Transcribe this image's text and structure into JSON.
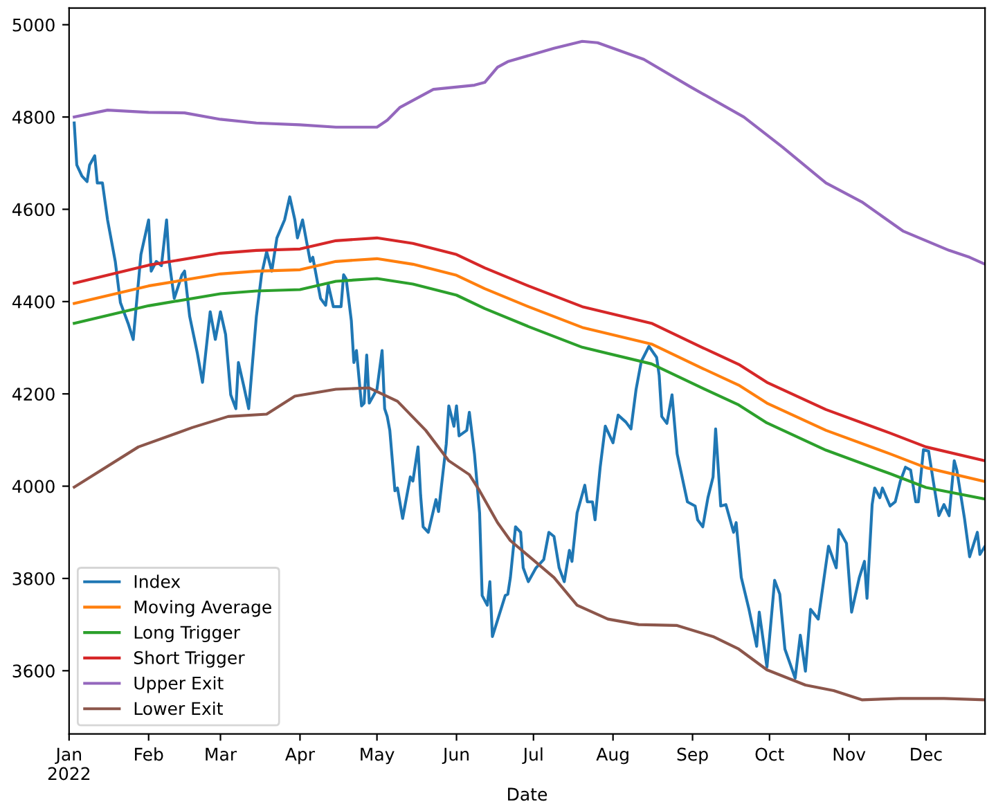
{
  "chart_data": {
    "type": "line",
    "xlabel": "Date",
    "legend": "bottom left",
    "grid": false,
    "marker": "none",
    "line_style": "solid",
    "xlim": [
      "2022-01-01",
      "2022-12-24"
    ],
    "xticks": [
      {
        "value": "2022-01-01",
        "label": "Jan\n2022"
      },
      {
        "value": "2022-02-01",
        "label": "Feb"
      },
      {
        "value": "2022-03-01",
        "label": "Mar"
      },
      {
        "value": "2022-04-01",
        "label": "Apr"
      },
      {
        "value": "2022-05-01",
        "label": "May"
      },
      {
        "value": "2022-06-01",
        "label": "Jun"
      },
      {
        "value": "2022-07-01",
        "label": "Jul"
      },
      {
        "value": "2022-08-01",
        "label": "Aug"
      },
      {
        "value": "2022-09-01",
        "label": "Sep"
      },
      {
        "value": "2022-10-01",
        "label": "Oct"
      },
      {
        "value": "2022-11-01",
        "label": "Nov"
      },
      {
        "value": "2022-12-01",
        "label": "Dec"
      }
    ],
    "ylim": [
      3463,
      5036
    ],
    "yticks": [
      3600,
      3800,
      4000,
      4200,
      4400,
      4600,
      4800,
      5000
    ],
    "series": [
      {
        "name": "Index",
        "color": "#1f77b4",
        "x": [
          "2022-01-03",
          "2022-01-04",
          "2022-01-06",
          "2022-01-08",
          "2022-01-09",
          "2022-01-11",
          "2022-01-12",
          "2022-01-14",
          "2022-01-16",
          "2022-01-19",
          "2022-01-21",
          "2022-01-24",
          "2022-01-26",
          "2022-01-29",
          "2022-02-01",
          "2022-02-02",
          "2022-02-04",
          "2022-02-06",
          "2022-02-08",
          "2022-02-09",
          "2022-02-11",
          "2022-02-14",
          "2022-02-15",
          "2022-02-17",
          "2022-02-20",
          "2022-02-22",
          "2022-02-25",
          "2022-02-27",
          "2022-03-01",
          "2022-03-03",
          "2022-03-05",
          "2022-03-07",
          "2022-03-08",
          "2022-03-10",
          "2022-03-12",
          "2022-03-15",
          "2022-03-17",
          "2022-03-19",
          "2022-03-21",
          "2022-03-23",
          "2022-03-26",
          "2022-03-28",
          "2022-03-30",
          "2022-03-31",
          "2022-04-02",
          "2022-04-05",
          "2022-04-06",
          "2022-04-09",
          "2022-04-11",
          "2022-04-12",
          "2022-04-14",
          "2022-04-17",
          "2022-04-18",
          "2022-04-19",
          "2022-04-21",
          "2022-04-22",
          "2022-04-23",
          "2022-04-25",
          "2022-04-26",
          "2022-04-27",
          "2022-04-28",
          "2022-05-01",
          "2022-05-03",
          "2022-05-04",
          "2022-05-05",
          "2022-05-06",
          "2022-05-08",
          "2022-05-09",
          "2022-05-11",
          "2022-05-14",
          "2022-05-15",
          "2022-05-17",
          "2022-05-18",
          "2022-05-19",
          "2022-05-21",
          "2022-05-24",
          "2022-05-25",
          "2022-05-28",
          "2022-05-29",
          "2022-05-31",
          "2022-06-01",
          "2022-06-02",
          "2022-06-05",
          "2022-06-06",
          "2022-06-08",
          "2022-06-10",
          "2022-06-11",
          "2022-06-13",
          "2022-06-14",
          "2022-06-15",
          "2022-06-20",
          "2022-06-21",
          "2022-06-22",
          "2022-06-24",
          "2022-06-26",
          "2022-06-27",
          "2022-06-29",
          "2022-07-02",
          "2022-07-05",
          "2022-07-07",
          "2022-07-09",
          "2022-07-11",
          "2022-07-13",
          "2022-07-15",
          "2022-07-16",
          "2022-07-18",
          "2022-07-21",
          "2022-07-22",
          "2022-07-24",
          "2022-07-25",
          "2022-07-27",
          "2022-07-29",
          "2022-08-01",
          "2022-08-03",
          "2022-08-06",
          "2022-08-08",
          "2022-08-10",
          "2022-08-12",
          "2022-08-15",
          "2022-08-18",
          "2022-08-19",
          "2022-08-20",
          "2022-08-22",
          "2022-08-24",
          "2022-08-26",
          "2022-08-30",
          "2022-09-02",
          "2022-09-03",
          "2022-09-05",
          "2022-09-07",
          "2022-09-09",
          "2022-09-10",
          "2022-09-12",
          "2022-09-14",
          "2022-09-17",
          "2022-09-18",
          "2022-09-20",
          "2022-09-23",
          "2022-09-26",
          "2022-09-27",
          "2022-09-30",
          "2022-10-03",
          "2022-10-05",
          "2022-10-07",
          "2022-10-11",
          "2022-10-13",
          "2022-10-15",
          "2022-10-17",
          "2022-10-20",
          "2022-10-24",
          "2022-10-27",
          "2022-10-28",
          "2022-10-31",
          "2022-11-02",
          "2022-11-05",
          "2022-11-07",
          "2022-11-08",
          "2022-11-10",
          "2022-11-11",
          "2022-11-13",
          "2022-11-14",
          "2022-11-17",
          "2022-11-19",
          "2022-11-21",
          "2022-11-23",
          "2022-11-25",
          "2022-11-27",
          "2022-11-28",
          "2022-11-30",
          "2022-12-02",
          "2022-12-04",
          "2022-12-06",
          "2022-12-08",
          "2022-12-10",
          "2022-12-12",
          "2022-12-13",
          "2022-12-16",
          "2022-12-18",
          "2022-12-21",
          "2022-12-22",
          "2022-12-24"
        ],
        "values": [
          4787,
          4696,
          4672,
          4660,
          4696,
          4716,
          4657,
          4657,
          4577,
          4487,
          4398,
          4353,
          4318,
          4502,
          4577,
          4466,
          4487,
          4478,
          4577,
          4487,
          4407,
          4458,
          4466,
          4368,
          4288,
          4225,
          4378,
          4318,
          4378,
          4329,
          4198,
          4168,
          4268,
          4219,
          4168,
          4368,
          4458,
          4508,
          4466,
          4538,
          4577,
          4627,
          4577,
          4538,
          4577,
          4487,
          4496,
          4407,
          4392,
          4437,
          4389,
          4389,
          4458,
          4449,
          4359,
          4268,
          4294,
          4174,
          4180,
          4284,
          4180,
          4210,
          4294,
          4168,
          4151,
          4121,
          3990,
          3996,
          3930,
          4020,
          4011,
          4085,
          3981,
          3912,
          3900,
          3971,
          3945,
          4091,
          4174,
          4130,
          4174,
          4109,
          4121,
          4160,
          4070,
          3942,
          3763,
          3742,
          3793,
          3674,
          3763,
          3766,
          3802,
          3912,
          3900,
          3823,
          3793,
          3823,
          3841,
          3900,
          3891,
          3823,
          3793,
          3861,
          3837,
          3942,
          4002,
          3966,
          3966,
          3927,
          4041,
          4130,
          4094,
          4154,
          4139,
          4124,
          4210,
          4270,
          4303,
          4279,
          4240,
          4151,
          4136,
          4198,
          4070,
          3966,
          3957,
          3927,
          3912,
          3975,
          4020,
          4124,
          3957,
          3960,
          3900,
          3921,
          3802,
          3733,
          3653,
          3727,
          3608,
          3796,
          3766,
          3647,
          3584,
          3677,
          3599,
          3733,
          3712,
          3870,
          3823,
          3906,
          3876,
          3727,
          3802,
          3837,
          3757,
          3960,
          3996,
          3975,
          3996,
          3957,
          3966,
          4011,
          4041,
          4035,
          3966,
          3966,
          4079,
          4076,
          4005,
          3936,
          3960,
          3936,
          4055,
          4035,
          3930,
          3847,
          3900,
          3852,
          3870
        ]
      },
      {
        "name": "Moving Average",
        "color": "#ff7f0e",
        "x": [
          "2022-01-03",
          "2022-02-01",
          "2022-03-01",
          "2022-03-15",
          "2022-04-01",
          "2022-04-15",
          "2022-05-01",
          "2022-05-15",
          "2022-06-01",
          "2022-06-12",
          "2022-06-29",
          "2022-07-20",
          "2022-08-16",
          "2022-09-05",
          "2022-09-19",
          "2022-09-30",
          "2022-10-23",
          "2022-11-17",
          "2022-12-01",
          "2022-12-24"
        ],
        "values": [
          4396,
          4434,
          4460,
          4466,
          4469,
          4487,
          4493,
          4481,
          4457,
          4428,
          4389,
          4344,
          4308,
          4255,
          4219,
          4180,
          4121,
          4070,
          4040,
          4010
        ]
      },
      {
        "name": "Long Trigger",
        "color": "#2ca02c",
        "x": [
          "2022-01-03",
          "2022-02-01",
          "2022-03-01",
          "2022-03-15",
          "2022-04-01",
          "2022-04-15",
          "2022-05-01",
          "2022-05-15",
          "2022-06-01",
          "2022-06-12",
          "2022-06-29",
          "2022-07-20",
          "2022-08-16",
          "2022-09-05",
          "2022-09-19",
          "2022-09-30",
          "2022-10-23",
          "2022-11-17",
          "2022-12-01",
          "2022-12-24"
        ],
        "values": [
          4353,
          4391,
          4417,
          4423,
          4426,
          4444,
          4450,
          4438,
          4414,
          4385,
          4346,
          4301,
          4265,
          4212,
          4176,
          4137,
          4078,
          4027,
          3997,
          3972
        ]
      },
      {
        "name": "Short Trigger",
        "color": "#d62728",
        "x": [
          "2022-01-03",
          "2022-02-01",
          "2022-03-01",
          "2022-03-15",
          "2022-04-01",
          "2022-04-15",
          "2022-05-01",
          "2022-05-15",
          "2022-06-01",
          "2022-06-12",
          "2022-06-29",
          "2022-07-20",
          "2022-08-16",
          "2022-09-05",
          "2022-09-19",
          "2022-09-30",
          "2022-10-23",
          "2022-11-17",
          "2022-12-01",
          "2022-12-24"
        ],
        "values": [
          4440,
          4479,
          4505,
          4511,
          4514,
          4532,
          4538,
          4526,
          4502,
          4473,
          4434,
          4389,
          4353,
          4300,
          4264,
          4225,
          4166,
          4115,
          4085,
          4055
        ]
      },
      {
        "name": "Upper Exit",
        "color": "#9467bd",
        "x": [
          "2022-01-03",
          "2022-01-16",
          "2022-02-01",
          "2022-02-15",
          "2022-03-01",
          "2022-03-15",
          "2022-04-01",
          "2022-04-15",
          "2022-05-01",
          "2022-05-05",
          "2022-05-10",
          "2022-05-23",
          "2022-06-08",
          "2022-06-12",
          "2022-06-17",
          "2022-06-21",
          "2022-07-09",
          "2022-07-20",
          "2022-07-26",
          "2022-08-13",
          "2022-08-31",
          "2022-09-21",
          "2022-10-06",
          "2022-10-23",
          "2022-11-06",
          "2022-11-22",
          "2022-12-10",
          "2022-12-18",
          "2022-12-24"
        ],
        "values": [
          4800,
          4815,
          4810,
          4809,
          4795,
          4787,
          4783,
          4778,
          4778,
          4793,
          4821,
          4860,
          4869,
          4875,
          4908,
          4920,
          4949,
          4964,
          4961,
          4925,
          4866,
          4800,
          4735,
          4657,
          4616,
          4553,
          4511,
          4496,
          4481
        ]
      },
      {
        "name": "Lower Exit",
        "color": "#8c564b",
        "x": [
          "2022-01-03",
          "2022-01-28",
          "2022-02-18",
          "2022-03-04",
          "2022-03-19",
          "2022-03-30",
          "2022-04-15",
          "2022-04-28",
          "2022-05-09",
          "2022-05-20",
          "2022-05-29",
          "2022-06-06",
          "2022-06-10",
          "2022-06-17",
          "2022-06-22",
          "2022-07-09",
          "2022-07-18",
          "2022-07-30",
          "2022-08-11",
          "2022-08-26",
          "2022-09-09",
          "2022-09-19",
          "2022-09-30",
          "2022-10-15",
          "2022-10-26",
          "2022-11-06",
          "2022-11-21",
          "2022-12-08",
          "2022-12-24"
        ],
        "values": [
          3998,
          4085,
          4127,
          4151,
          4156,
          4195,
          4210,
          4213,
          4184,
          4121,
          4055,
          4025,
          3990,
          3921,
          3882,
          3802,
          3742,
          3712,
          3700,
          3698,
          3674,
          3647,
          3602,
          3569,
          3557,
          3537,
          3540,
          3540,
          3537
        ]
      }
    ]
  }
}
